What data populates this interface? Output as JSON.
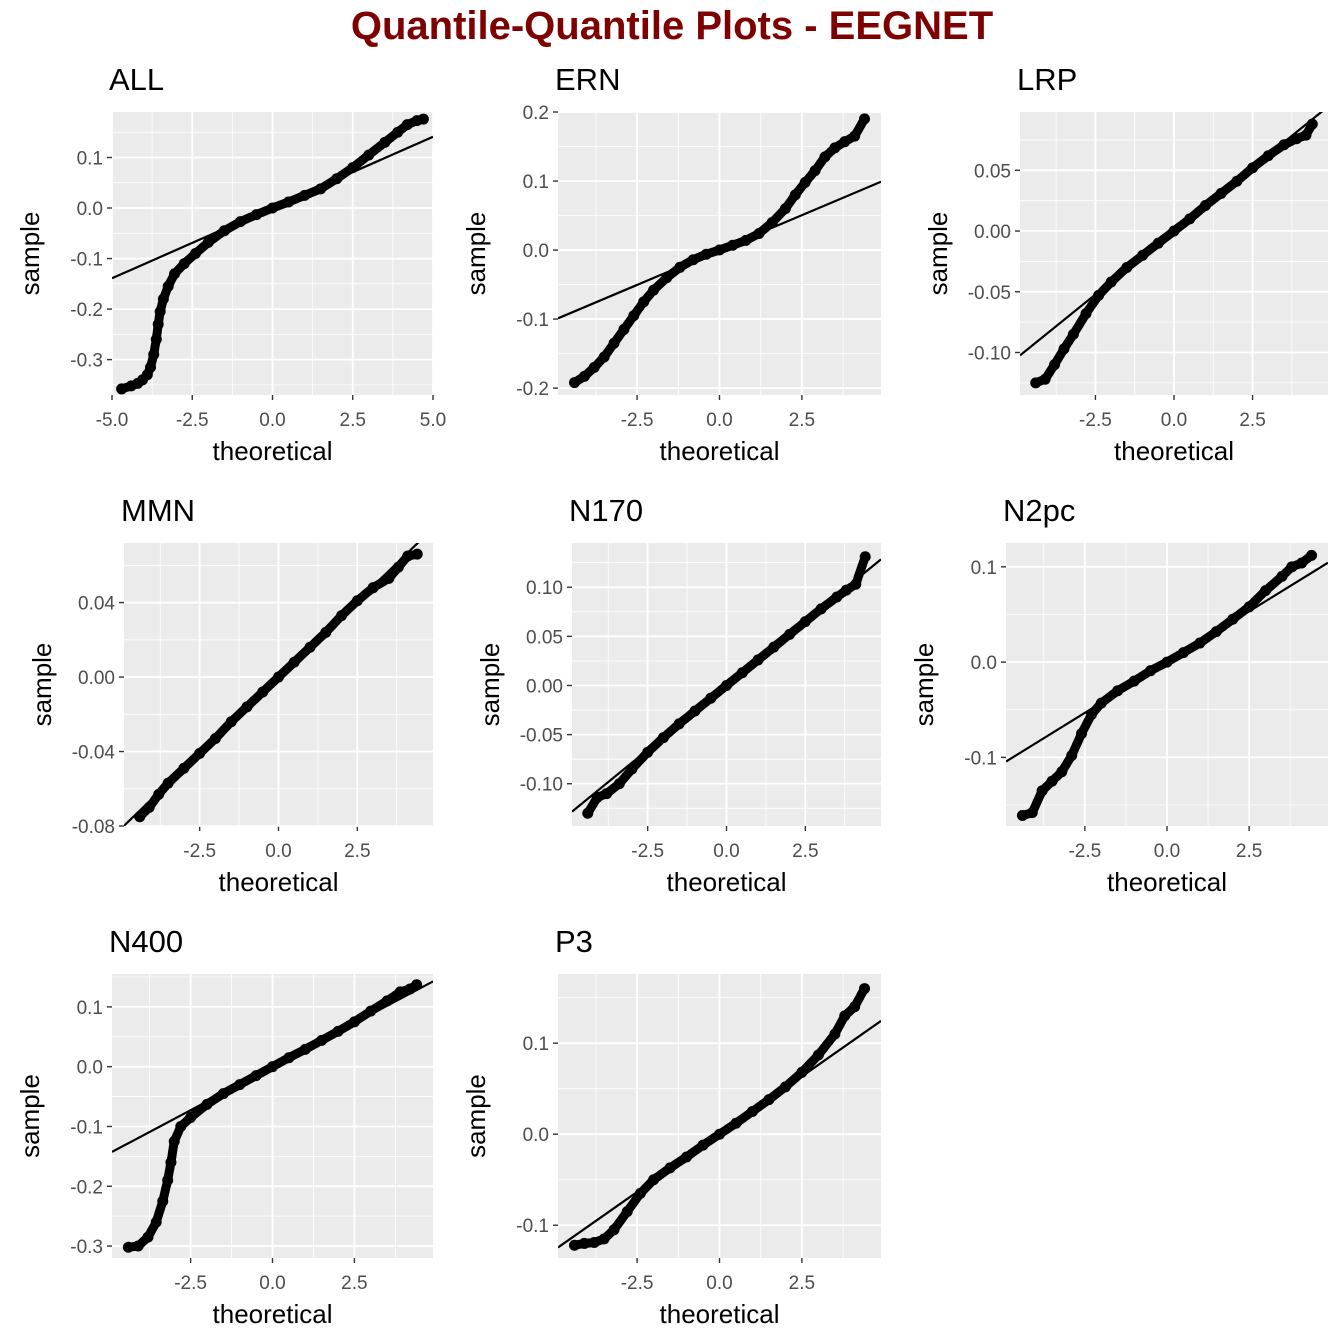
{
  "figure": {
    "title": "Quantile-Quantile Plots - EEGNET",
    "title_color": "#7f0000"
  },
  "chart_data": [
    {
      "type": "scatter",
      "title": "ALL",
      "xlabel": "theoretical",
      "ylabel": "sample",
      "xlim": [
        -5.0,
        5.0
      ],
      "ylim": [
        -0.37,
        0.19
      ],
      "xticks": [
        -5.0,
        -2.5,
        0.0,
        2.5,
        5.0
      ],
      "xtick_labels": [
        "-5.0",
        "-2.5",
        "0.0",
        "2.5",
        "5.0"
      ],
      "yticks": [
        -0.3,
        -0.2,
        -0.1,
        0.0,
        0.1
      ],
      "ytick_labels": [
        "-0.3",
        "-0.2",
        "-0.1",
        "0.0",
        "0.1"
      ],
      "reference_line": {
        "slope": 0.028,
        "intercept": 0.001
      },
      "points": [
        [
          -4.7,
          -0.358
        ],
        [
          -4.4,
          -0.352
        ],
        [
          -4.2,
          -0.347
        ],
        [
          -4.05,
          -0.34
        ],
        [
          -3.9,
          -0.33
        ],
        [
          -3.8,
          -0.315
        ],
        [
          -3.7,
          -0.29
        ],
        [
          -3.62,
          -0.26
        ],
        [
          -3.56,
          -0.23
        ],
        [
          -3.5,
          -0.205
        ],
        [
          -3.4,
          -0.18
        ],
        [
          -3.25,
          -0.155
        ],
        [
          -3.05,
          -0.13
        ],
        [
          -2.75,
          -0.11
        ],
        [
          -2.4,
          -0.09
        ],
        [
          -2.0,
          -0.068
        ],
        [
          -1.5,
          -0.045
        ],
        [
          -1.0,
          -0.027
        ],
        [
          -0.5,
          -0.013
        ],
        [
          0.0,
          0.0
        ],
        [
          0.5,
          0.012
        ],
        [
          1.0,
          0.025
        ],
        [
          1.5,
          0.038
        ],
        [
          2.0,
          0.058
        ],
        [
          2.5,
          0.08
        ],
        [
          3.0,
          0.105
        ],
        [
          3.5,
          0.13
        ],
        [
          3.9,
          0.15
        ],
        [
          4.2,
          0.165
        ],
        [
          4.5,
          0.173
        ],
        [
          4.7,
          0.176
        ]
      ]
    },
    {
      "type": "scatter",
      "title": "ERN",
      "xlabel": "theoretical",
      "ylabel": "sample",
      "xlim": [
        -4.9,
        4.9
      ],
      "ylim": [
        -0.21,
        0.2
      ],
      "xticks": [
        -2.5,
        0.0,
        2.5
      ],
      "xtick_labels": [
        "-2.5",
        "0.0",
        "2.5"
      ],
      "yticks": [
        -0.2,
        -0.1,
        0.0,
        0.1,
        0.2
      ],
      "ytick_labels": [
        "-0.2",
        "-0.1",
        "0.0",
        "0.1",
        "0.2"
      ],
      "reference_line": {
        "slope": 0.0202,
        "intercept": 0.0
      },
      "points": [
        [
          -4.4,
          -0.192
        ],
        [
          -4.1,
          -0.183
        ],
        [
          -3.8,
          -0.17
        ],
        [
          -3.5,
          -0.155
        ],
        [
          -3.2,
          -0.135
        ],
        [
          -2.9,
          -0.115
        ],
        [
          -2.6,
          -0.095
        ],
        [
          -2.3,
          -0.075
        ],
        [
          -2.0,
          -0.058
        ],
        [
          -1.6,
          -0.04
        ],
        [
          -1.2,
          -0.025
        ],
        [
          -0.8,
          -0.014
        ],
        [
          -0.4,
          -0.006
        ],
        [
          0.0,
          0.0
        ],
        [
          0.4,
          0.007
        ],
        [
          0.8,
          0.014
        ],
        [
          1.2,
          0.024
        ],
        [
          1.6,
          0.04
        ],
        [
          2.0,
          0.06
        ],
        [
          2.3,
          0.08
        ],
        [
          2.6,
          0.098
        ],
        [
          2.9,
          0.115
        ],
        [
          3.2,
          0.135
        ],
        [
          3.5,
          0.148
        ],
        [
          3.8,
          0.157
        ],
        [
          4.1,
          0.165
        ],
        [
          4.4,
          0.19
        ]
      ]
    },
    {
      "type": "scatter",
      "title": "LRP",
      "xlabel": "theoretical",
      "ylabel": "sample",
      "xlim": [
        -4.9,
        4.9
      ],
      "ylim": [
        -0.135,
        0.098
      ],
      "xticks": [
        -2.5,
        0.0,
        2.5
      ],
      "xtick_labels": [
        "-2.5",
        "0.0",
        "2.5"
      ],
      "yticks": [
        -0.1,
        -0.05,
        0.0,
        0.05
      ],
      "ytick_labels": [
        "-0.10",
        "-0.05",
        "0.00",
        "0.05"
      ],
      "reference_line": {
        "slope": 0.0209,
        "intercept": 0.0
      },
      "points": [
        [
          -4.4,
          -0.125
        ],
        [
          -4.1,
          -0.122
        ],
        [
          -3.8,
          -0.11
        ],
        [
          -3.5,
          -0.097
        ],
        [
          -3.2,
          -0.085
        ],
        [
          -2.8,
          -0.068
        ],
        [
          -2.4,
          -0.053
        ],
        [
          -2.0,
          -0.042
        ],
        [
          -1.5,
          -0.03
        ],
        [
          -1.0,
          -0.02
        ],
        [
          -0.5,
          -0.01
        ],
        [
          0.0,
          0.0
        ],
        [
          0.5,
          0.01
        ],
        [
          1.0,
          0.021
        ],
        [
          1.5,
          0.031
        ],
        [
          2.0,
          0.041
        ],
        [
          2.5,
          0.052
        ],
        [
          3.0,
          0.062
        ],
        [
          3.5,
          0.071
        ],
        [
          3.9,
          0.076
        ],
        [
          4.2,
          0.079
        ],
        [
          4.4,
          0.088
        ]
      ]
    },
    {
      "type": "scatter",
      "title": "MMN",
      "xlabel": "theoretical",
      "ylabel": "sample",
      "xlim": [
        -4.9,
        4.9
      ],
      "ylim": [
        -0.08,
        0.072
      ],
      "xticks": [
        -2.5,
        0.0,
        2.5
      ],
      "xtick_labels": [
        "-2.5",
        "0.0",
        "2.5"
      ],
      "yticks": [
        -0.08,
        -0.04,
        0.0,
        0.04
      ],
      "ytick_labels": [
        "-0.08",
        "-0.04",
        "0.00",
        "0.04"
      ],
      "reference_line": {
        "slope": 0.0163,
        "intercept": 0.0
      },
      "points": [
        [
          -4.4,
          -0.075
        ],
        [
          -4.1,
          -0.07
        ],
        [
          -3.8,
          -0.063
        ],
        [
          -3.5,
          -0.057
        ],
        [
          -3.0,
          -0.049
        ],
        [
          -2.5,
          -0.041
        ],
        [
          -2.0,
          -0.033
        ],
        [
          -1.5,
          -0.024
        ],
        [
          -1.0,
          -0.016
        ],
        [
          -0.5,
          -0.008
        ],
        [
          0.0,
          0.0
        ],
        [
          0.5,
          0.008
        ],
        [
          1.0,
          0.016
        ],
        [
          1.5,
          0.024
        ],
        [
          2.0,
          0.033
        ],
        [
          2.5,
          0.041
        ],
        [
          3.0,
          0.048
        ],
        [
          3.5,
          0.053
        ],
        [
          3.8,
          0.059
        ],
        [
          4.1,
          0.065
        ],
        [
          4.4,
          0.066
        ]
      ]
    },
    {
      "type": "scatter",
      "title": "N170",
      "xlabel": "theoretical",
      "ylabel": "sample",
      "xlim": [
        -4.9,
        4.9
      ],
      "ylim": [
        -0.143,
        0.145
      ],
      "xticks": [
        -2.5,
        0.0,
        2.5
      ],
      "xtick_labels": [
        "-2.5",
        "0.0",
        "2.5"
      ],
      "yticks": [
        -0.1,
        -0.05,
        0.0,
        0.05,
        0.1
      ],
      "ytick_labels": [
        "-0.10",
        "-0.05",
        "0.00",
        "0.05",
        "0.10"
      ],
      "reference_line": {
        "slope": 0.0262,
        "intercept": 0.0
      },
      "points": [
        [
          -4.4,
          -0.13
        ],
        [
          -4.1,
          -0.114
        ],
        [
          -3.8,
          -0.11
        ],
        [
          -3.4,
          -0.1
        ],
        [
          -3.0,
          -0.085
        ],
        [
          -2.5,
          -0.068
        ],
        [
          -2.0,
          -0.053
        ],
        [
          -1.5,
          -0.039
        ],
        [
          -1.0,
          -0.026
        ],
        [
          -0.5,
          -0.013
        ],
        [
          0.0,
          0.0
        ],
        [
          0.5,
          0.013
        ],
        [
          1.0,
          0.026
        ],
        [
          1.5,
          0.039
        ],
        [
          2.0,
          0.052
        ],
        [
          2.5,
          0.065
        ],
        [
          3.0,
          0.078
        ],
        [
          3.5,
          0.09
        ],
        [
          3.8,
          0.097
        ],
        [
          4.1,
          0.103
        ],
        [
          4.4,
          0.131
        ]
      ]
    },
    {
      "type": "scatter",
      "title": "N2pc",
      "xlabel": "theoretical",
      "ylabel": "sample",
      "xlim": [
        -4.9,
        4.9
      ],
      "ylim": [
        -0.172,
        0.125
      ],
      "xticks": [
        -2.5,
        0.0,
        2.5
      ],
      "xtick_labels": [
        "-2.5",
        "0.0",
        "2.5"
      ],
      "yticks": [
        -0.1,
        0.0,
        0.1
      ],
      "ytick_labels": [
        "-0.1",
        "0.0",
        "0.1"
      ],
      "reference_line": {
        "slope": 0.0213,
        "intercept": 0.0
      },
      "points": [
        [
          -4.4,
          -0.161
        ],
        [
          -4.1,
          -0.158
        ],
        [
          -3.8,
          -0.135
        ],
        [
          -3.5,
          -0.125
        ],
        [
          -3.2,
          -0.115
        ],
        [
          -2.9,
          -0.098
        ],
        [
          -2.6,
          -0.075
        ],
        [
          -2.3,
          -0.055
        ],
        [
          -2.0,
          -0.043
        ],
        [
          -1.5,
          -0.03
        ],
        [
          -1.0,
          -0.02
        ],
        [
          -0.5,
          -0.009
        ],
        [
          0.0,
          0.0
        ],
        [
          0.5,
          0.01
        ],
        [
          1.0,
          0.02
        ],
        [
          1.5,
          0.032
        ],
        [
          2.0,
          0.045
        ],
        [
          2.5,
          0.058
        ],
        [
          3.0,
          0.075
        ],
        [
          3.5,
          0.09
        ],
        [
          3.8,
          0.1
        ],
        [
          4.1,
          0.104
        ],
        [
          4.4,
          0.112
        ]
      ]
    },
    {
      "type": "scatter",
      "title": "N400",
      "xlabel": "theoretical",
      "ylabel": "sample",
      "xlim": [
        -4.9,
        4.9
      ],
      "ylim": [
        -0.32,
        0.155
      ],
      "xticks": [
        -2.5,
        0.0,
        2.5
      ],
      "xtick_labels": [
        "-2.5",
        "0.0",
        "2.5"
      ],
      "yticks": [
        -0.3,
        -0.2,
        -0.1,
        0.0,
        0.1
      ],
      "ytick_labels": [
        "-0.3",
        "-0.2",
        "-0.1",
        "0.0",
        "0.1"
      ],
      "reference_line": {
        "slope": 0.0291,
        "intercept": 0.0
      },
      "points": [
        [
          -4.4,
          -0.302
        ],
        [
          -4.1,
          -0.3
        ],
        [
          -3.8,
          -0.285
        ],
        [
          -3.55,
          -0.26
        ],
        [
          -3.35,
          -0.225
        ],
        [
          -3.2,
          -0.19
        ],
        [
          -3.1,
          -0.16
        ],
        [
          -3.0,
          -0.125
        ],
        [
          -2.8,
          -0.1
        ],
        [
          -2.5,
          -0.085
        ],
        [
          -2.0,
          -0.063
        ],
        [
          -1.5,
          -0.045
        ],
        [
          -1.0,
          -0.03
        ],
        [
          -0.5,
          -0.015
        ],
        [
          0.0,
          0.0
        ],
        [
          0.5,
          0.015
        ],
        [
          1.0,
          0.029
        ],
        [
          1.5,
          0.044
        ],
        [
          2.0,
          0.059
        ],
        [
          2.5,
          0.075
        ],
        [
          3.0,
          0.093
        ],
        [
          3.5,
          0.11
        ],
        [
          3.9,
          0.125
        ],
        [
          4.2,
          0.13
        ],
        [
          4.4,
          0.137
        ]
      ]
    },
    {
      "type": "scatter",
      "title": "P3",
      "xlabel": "theoretical",
      "ylabel": "sample",
      "xlim": [
        -4.9,
        4.9
      ],
      "ylim": [
        -0.136,
        0.176
      ],
      "xticks": [
        -2.5,
        0.0,
        2.5
      ],
      "xtick_labels": [
        "-2.5",
        "0.0",
        "2.5"
      ],
      "yticks": [
        -0.1,
        0.0,
        0.1
      ],
      "ytick_labels": [
        "-0.1",
        "0.0",
        "0.1"
      ],
      "reference_line": {
        "slope": 0.0254,
        "intercept": 0.0
      },
      "points": [
        [
          -4.4,
          -0.122
        ],
        [
          -4.1,
          -0.12
        ],
        [
          -3.8,
          -0.119
        ],
        [
          -3.5,
          -0.115
        ],
        [
          -3.2,
          -0.105
        ],
        [
          -2.8,
          -0.085
        ],
        [
          -2.4,
          -0.065
        ],
        [
          -2.0,
          -0.05
        ],
        [
          -1.5,
          -0.037
        ],
        [
          -1.0,
          -0.025
        ],
        [
          -0.5,
          -0.012
        ],
        [
          0.0,
          0.0
        ],
        [
          0.5,
          0.012
        ],
        [
          1.0,
          0.025
        ],
        [
          1.5,
          0.038
        ],
        [
          2.0,
          0.052
        ],
        [
          2.5,
          0.068
        ],
        [
          3.0,
          0.087
        ],
        [
          3.5,
          0.11
        ],
        [
          3.8,
          0.13
        ],
        [
          4.1,
          0.14
        ],
        [
          4.4,
          0.16
        ]
      ]
    }
  ]
}
